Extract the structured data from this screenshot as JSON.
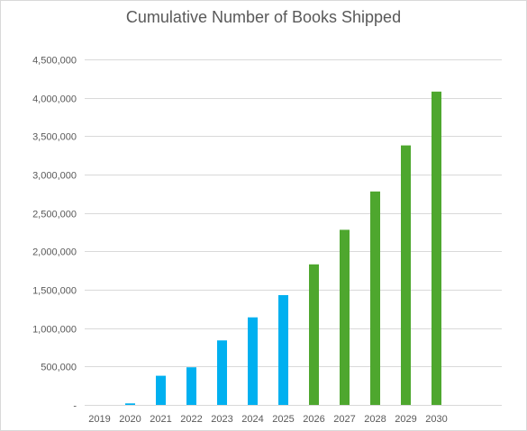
{
  "chart_data": {
    "type": "bar",
    "title": "Cumulative Number of Books Shipped",
    "xlabel": "",
    "ylabel": "",
    "categories": [
      "2019",
      "2020",
      "2021",
      "2022",
      "2023",
      "2024",
      "2025",
      "2026",
      "2027",
      "2028",
      "2029",
      "2030"
    ],
    "values": [
      0,
      20000,
      380000,
      490000,
      840000,
      1140000,
      1430000,
      1830000,
      2280000,
      2780000,
      3380000,
      4080000
    ],
    "bar_colors": [
      "#00b0f0",
      "#00b0f0",
      "#00b0f0",
      "#00b0f0",
      "#00b0f0",
      "#00b0f0",
      "#00b0f0",
      "#4ea72e",
      "#4ea72e",
      "#4ea72e",
      "#4ea72e",
      "#4ea72e"
    ],
    "ylim": [
      0,
      4500000
    ],
    "y_ticks": [
      {
        "value": 0,
        "label": "-"
      },
      {
        "value": 500000,
        "label": "500,000"
      },
      {
        "value": 1000000,
        "label": "1,000,000"
      },
      {
        "value": 1500000,
        "label": "1,500,000"
      },
      {
        "value": 2000000,
        "label": "2,000,000"
      },
      {
        "value": 2500000,
        "label": "2,500,000"
      },
      {
        "value": 3000000,
        "label": "3,000,000"
      },
      {
        "value": 3500000,
        "label": "3,500,000"
      },
      {
        "value": 4000000,
        "label": "4,000,000"
      },
      {
        "value": 4500000,
        "label": "4,500,000"
      }
    ],
    "grid": true,
    "legend": "none",
    "colors": {
      "gridline": "#d9d9d9",
      "axis_text": "#595959",
      "title_text": "#595959"
    }
  }
}
